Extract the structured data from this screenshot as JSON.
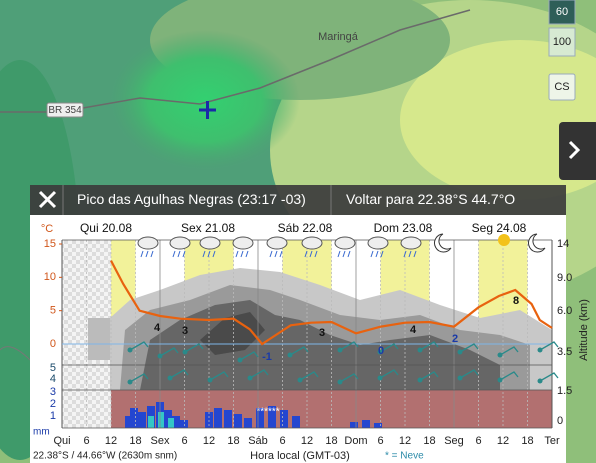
{
  "map": {
    "place_label": "Maringá",
    "road_label": "BR 354",
    "zoom_buttons": [
      "60",
      "100"
    ],
    "layer_button": "CS"
  },
  "popup": {
    "title": "Pico das Agulhas Negras (23:17 -03)",
    "back_link": "Voltar para 22.38°S 44.7°O"
  },
  "chart_data": {
    "type": "line",
    "y_label": "°C",
    "y2_label": "Altitude (km)",
    "day_labels": [
      "Qui 20.08",
      "Sex 21.08",
      "Sáb 22.08",
      "Dom 23.08",
      "Seg 24.08"
    ],
    "x_tick_labels": [
      "Qui",
      "6",
      "12",
      "18",
      "Sex",
      "6",
      "12",
      "18",
      "Sáb",
      "6",
      "12",
      "18",
      "Dom",
      "6",
      "12",
      "18",
      "Seg",
      "6",
      "12",
      "18",
      "Ter"
    ],
    "x_label": "Hora local (GMT-03)",
    "location": "22.38°S / 44.66°W (2630m snm)",
    "snow_note": "* = Neve",
    "xlim": [
      0,
      120
    ],
    "ylim": [
      0,
      15
    ],
    "yticks": [
      0,
      5,
      10,
      15
    ],
    "altitude_ticks": [
      "14",
      "9.0",
      "6.0",
      "3.5",
      "1.5",
      "0"
    ],
    "wind_ticks": [
      "5",
      "4",
      "3",
      "2",
      "1"
    ],
    "precip_unit": "mm",
    "color": "#e8620f",
    "x": [
      12,
      15,
      19,
      24,
      29,
      36,
      42,
      46,
      49,
      52,
      56,
      61,
      66,
      72,
      78,
      84,
      90,
      96,
      102,
      107,
      111,
      115,
      117,
      120
    ],
    "values": [
      12.5,
      9,
      5,
      4.2,
      3.8,
      3.6,
      3.8,
      2.2,
      0,
      1.2,
      2.8,
      3.2,
      3.3,
      1.6,
      2.6,
      3.2,
      3.3,
      2.6,
      5.5,
      7.2,
      8.1,
      6,
      3.6,
      2.4
    ],
    "annotations": [
      4,
      3,
      3,
      4,
      8,
      -1,
      0,
      2
    ],
    "snow_marker": "******"
  }
}
